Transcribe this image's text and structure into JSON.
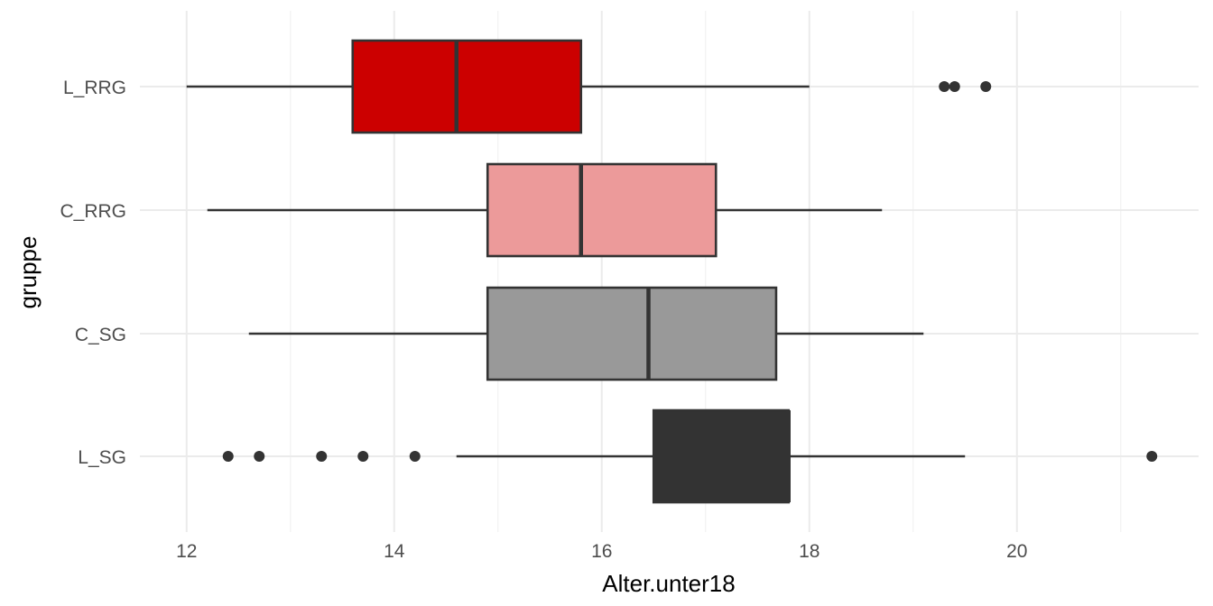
{
  "chart_data": {
    "type": "boxplot",
    "orientation": "horizontal",
    "title": "",
    "xlabel": "Alter.unter18",
    "ylabel": "gruppe",
    "xlim": [
      11.55,
      21.75
    ],
    "x_ticks": [
      12,
      14,
      16,
      18,
      20
    ],
    "x_tick_labels": [
      "12",
      "14",
      "16",
      "18",
      "20"
    ],
    "x_minor_ticks": [
      13,
      15,
      17,
      19,
      21
    ],
    "grid": true,
    "categories": [
      "L_RRG",
      "C_RRG",
      "C_SG",
      "L_SG"
    ],
    "series": [
      {
        "category": "L_RRG",
        "whisker_low": 12.0,
        "q1": 13.6,
        "median": 14.6,
        "q3": 15.8,
        "whisker_high": 18.0,
        "outliers": [
          19.3,
          19.4,
          19.7
        ],
        "fill": "#cc0000"
      },
      {
        "category": "C_RRG",
        "whisker_low": 12.2,
        "q1": 14.9,
        "median": 15.8,
        "q3": 17.1,
        "whisker_high": 18.7,
        "outliers": [],
        "fill": "#ec9a9a"
      },
      {
        "category": "C_SG",
        "whisker_low": 12.6,
        "q1": 14.9,
        "median": 16.45,
        "q3": 17.68,
        "whisker_high": 19.1,
        "outliers": [],
        "fill": "#999999"
      },
      {
        "category": "L_SG",
        "whisker_low": 14.6,
        "q1": 16.5,
        "median": 17.8,
        "q3": 17.8,
        "whisker_high": 19.5,
        "outliers": [
          12.4,
          12.7,
          13.3,
          13.7,
          14.2,
          21.3
        ],
        "fill": "#333333"
      }
    ]
  },
  "colors": {
    "grid_major": "#ebebeb",
    "grid_minor": "#f3f3f3",
    "line": "#333333",
    "tick_text": "#4d4d4d",
    "title_text": "#000000"
  }
}
